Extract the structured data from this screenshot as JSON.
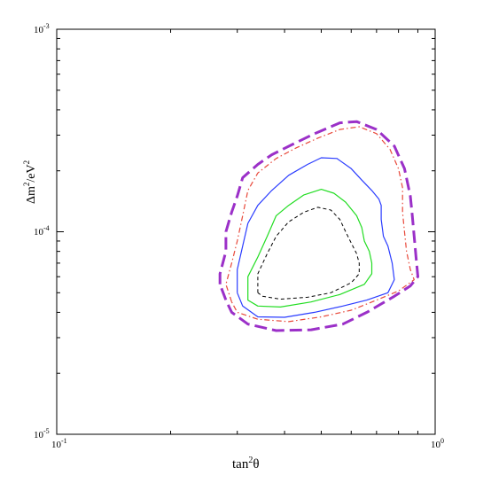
{
  "chart_data": {
    "type": "line",
    "title": "",
    "xscale": "log",
    "yscale": "log",
    "xlim": [
      0.1,
      1.0
    ],
    "ylim": [
      1e-05,
      0.001
    ],
    "grid": false,
    "legend": "none",
    "xlabel": {
      "base": "tan",
      "sup": "2",
      "tail": "θ"
    },
    "ylabel": {
      "p1": "Δm",
      "sup1": "2",
      "p2": "/eV",
      "sup2": "2"
    },
    "x_ticks": [
      {
        "x": 0.1,
        "base": "10",
        "exp": "-1"
      },
      {
        "x": 1.0,
        "base": "10",
        "exp": "0"
      }
    ],
    "y_ticks": [
      {
        "y": 1e-05,
        "base": "10",
        "exp": "-5"
      },
      {
        "y": 0.0001,
        "base": "10",
        "exp": "-4"
      },
      {
        "y": 0.001,
        "base": "10",
        "exp": "-3"
      }
    ],
    "series": [
      {
        "color": "#9b30c8",
        "dash": "14,6",
        "width": 3,
        "points": [
          [
            0.27,
            5.5e-05
          ],
          [
            0.27,
            6.2e-05
          ],
          [
            0.28,
            8e-05
          ],
          [
            0.28,
            0.0001
          ],
          [
            0.29,
            0.000125
          ],
          [
            0.3,
            0.00015
          ],
          [
            0.31,
            0.000185
          ],
          [
            0.34,
            0.000215
          ],
          [
            0.37,
            0.00024
          ],
          [
            0.42,
            0.00027
          ],
          [
            0.48,
            0.000305
          ],
          [
            0.56,
            0.000345
          ],
          [
            0.62,
            0.00035
          ],
          [
            0.7,
            0.00032
          ],
          [
            0.78,
            0.000265
          ],
          [
            0.83,
            0.000205
          ],
          [
            0.86,
            0.00015
          ],
          [
            0.87,
            0.00012
          ],
          [
            0.88,
            9.5e-05
          ],
          [
            0.89,
            7.5e-05
          ],
          [
            0.9,
            6e-05
          ],
          [
            0.86,
            5.4e-05
          ],
          [
            0.78,
            4.8e-05
          ],
          [
            0.66,
            4e-05
          ],
          [
            0.57,
            3.5e-05
          ],
          [
            0.47,
            3.28e-05
          ],
          [
            0.38,
            3.25e-05
          ],
          [
            0.32,
            3.5e-05
          ],
          [
            0.29,
            4e-05
          ],
          [
            0.28,
            4.6e-05
          ],
          [
            0.27,
            5.5e-05
          ]
        ]
      },
      {
        "color": "#e8483a",
        "dash": "6,3,1.5,3",
        "width": 1.2,
        "points": [
          [
            0.29,
            4.5e-05
          ],
          [
            0.28,
            5.5e-05
          ],
          [
            0.29,
            7e-05
          ],
          [
            0.3,
            9e-05
          ],
          [
            0.31,
            0.00012
          ],
          [
            0.32,
            0.00016
          ],
          [
            0.34,
            0.000195
          ],
          [
            0.38,
            0.00023
          ],
          [
            0.43,
            0.00026
          ],
          [
            0.49,
            0.00029
          ],
          [
            0.56,
            0.00032
          ],
          [
            0.63,
            0.00033
          ],
          [
            0.7,
            0.000305
          ],
          [
            0.76,
            0.000255
          ],
          [
            0.8,
            0.000205
          ],
          [
            0.82,
            0.000165
          ],
          [
            0.82,
            0.000125
          ],
          [
            0.83,
            0.0001
          ],
          [
            0.84,
            8e-05
          ],
          [
            0.86,
            6.5e-05
          ],
          [
            0.88,
            5.8e-05
          ],
          [
            0.8,
            5.1e-05
          ],
          [
            0.7,
            4.6e-05
          ],
          [
            0.6,
            4.1e-05
          ],
          [
            0.5,
            3.8e-05
          ],
          [
            0.41,
            3.6e-05
          ],
          [
            0.34,
            3.7e-05
          ],
          [
            0.3,
            4e-05
          ],
          [
            0.29,
            4.5e-05
          ]
        ]
      },
      {
        "color": "#2a3cff",
        "dash": "",
        "width": 1.2,
        "points": [
          [
            0.3,
            5e-05
          ],
          [
            0.3,
            6.5e-05
          ],
          [
            0.31,
            8.5e-05
          ],
          [
            0.32,
            0.00011
          ],
          [
            0.34,
            0.000135
          ],
          [
            0.37,
            0.00016
          ],
          [
            0.41,
            0.00019
          ],
          [
            0.46,
            0.000215
          ],
          [
            0.5,
            0.000232
          ],
          [
            0.55,
            0.00023
          ],
          [
            0.6,
            0.000205
          ],
          [
            0.64,
            0.00018
          ],
          [
            0.68,
            0.00016
          ],
          [
            0.71,
            0.000145
          ],
          [
            0.72,
            0.000135
          ],
          [
            0.72,
            0.000115
          ],
          [
            0.73,
            9.5e-05
          ],
          [
            0.75,
            8.5e-05
          ],
          [
            0.77,
            7e-05
          ],
          [
            0.78,
            5.8e-05
          ],
          [
            0.75,
            5e-05
          ],
          [
            0.66,
            4.6e-05
          ],
          [
            0.57,
            4.3e-05
          ],
          [
            0.48,
            4e-05
          ],
          [
            0.4,
            3.78e-05
          ],
          [
            0.34,
            3.8e-05
          ],
          [
            0.31,
            4.3e-05
          ],
          [
            0.3,
            5e-05
          ]
        ]
      },
      {
        "color": "#22dd22",
        "dash": "",
        "width": 1.2,
        "points": [
          [
            0.32,
            5.1e-05
          ],
          [
            0.32,
            6e-05
          ],
          [
            0.34,
            7.5e-05
          ],
          [
            0.36,
            9.5e-05
          ],
          [
            0.38,
            0.00012
          ],
          [
            0.41,
            0.000135
          ],
          [
            0.45,
            0.000152
          ],
          [
            0.5,
            0.000162
          ],
          [
            0.54,
            0.000155
          ],
          [
            0.58,
            0.00014
          ],
          [
            0.62,
            0.00012
          ],
          [
            0.64,
            0.000105
          ],
          [
            0.65,
            9e-05
          ],
          [
            0.67,
            8e-05
          ],
          [
            0.68,
            7e-05
          ],
          [
            0.68,
            6.2e-05
          ],
          [
            0.65,
            5.5e-05
          ],
          [
            0.56,
            4.9e-05
          ],
          [
            0.47,
            4.5e-05
          ],
          [
            0.39,
            4.25e-05
          ],
          [
            0.34,
            4.3e-05
          ],
          [
            0.32,
            4.6e-05
          ],
          [
            0.32,
            5.1e-05
          ]
        ]
      },
      {
        "color": "#000000",
        "dash": "4,3",
        "width": 1.0,
        "points": [
          [
            0.34,
            5e-05
          ],
          [
            0.34,
            6.2e-05
          ],
          [
            0.36,
            7.8e-05
          ],
          [
            0.38,
            9.5e-05
          ],
          [
            0.41,
            0.000112
          ],
          [
            0.45,
            0.000125
          ],
          [
            0.49,
            0.000132
          ],
          [
            0.53,
            0.000128
          ],
          [
            0.56,
            0.000115
          ],
          [
            0.58,
            0.0001
          ],
          [
            0.6,
            8.8e-05
          ],
          [
            0.62,
            7.8e-05
          ],
          [
            0.63,
            7e-05
          ],
          [
            0.63,
            6.2e-05
          ],
          [
            0.6,
            5.6e-05
          ],
          [
            0.53,
            5e-05
          ],
          [
            0.46,
            4.75e-05
          ],
          [
            0.39,
            4.65e-05
          ],
          [
            0.35,
            4.8e-05
          ],
          [
            0.34,
            5e-05
          ]
        ]
      }
    ]
  }
}
